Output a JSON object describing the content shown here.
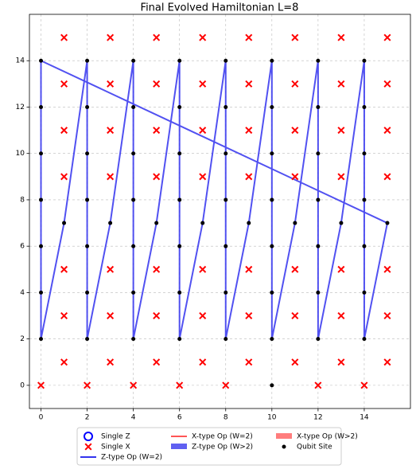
{
  "chart_data": {
    "type": "scatter",
    "title": "Final Evolved Hamiltonian L=8",
    "xlim": [
      -0.5,
      16
    ],
    "ylim": [
      -1,
      16
    ],
    "xticks": [
      0,
      2,
      4,
      6,
      8,
      10,
      12,
      14
    ],
    "yticks": [
      0,
      2,
      4,
      6,
      8,
      10,
      12,
      14
    ],
    "grid": true,
    "legend": "lower center outside",
    "series": [
      {
        "name": "Single Z",
        "color": "#0000ff",
        "marker": "open-circle",
        "x": [],
        "y": []
      },
      {
        "name": "Single X",
        "color": "#ff0000",
        "marker": "x",
        "x": [
          1,
          1,
          1,
          1,
          1,
          1,
          1,
          3,
          3,
          3,
          3,
          3,
          3,
          3,
          5,
          5,
          5,
          5,
          5,
          5,
          5,
          7,
          7,
          7,
          7,
          7,
          7,
          7,
          9,
          9,
          9,
          9,
          9,
          9,
          9,
          11,
          11,
          11,
          11,
          11,
          11,
          11,
          13,
          13,
          13,
          13,
          13,
          13,
          13,
          15,
          15,
          15,
          15,
          15,
          15,
          15,
          0,
          2,
          4,
          6,
          8,
          12,
          14
        ],
        "y": [
          1,
          3,
          5,
          9,
          11,
          13,
          15,
          1,
          3,
          5,
          9,
          11,
          13,
          15,
          1,
          3,
          5,
          9,
          11,
          13,
          15,
          1,
          3,
          5,
          9,
          11,
          13,
          15,
          1,
          3,
          5,
          9,
          11,
          13,
          15,
          1,
          3,
          5,
          9,
          11,
          13,
          15,
          1,
          3,
          5,
          9,
          11,
          13,
          15,
          1,
          3,
          5,
          9,
          11,
          13,
          15,
          0,
          0,
          0,
          0,
          0,
          0,
          0
        ]
      },
      {
        "name": "Z-type Op (W=2)",
        "color": "#3333ee",
        "marker": "line",
        "x": [
          0,
          0,
          1,
          2,
          2,
          3,
          4,
          4,
          5,
          6,
          6,
          7,
          8,
          8,
          9,
          10,
          10,
          11,
          12,
          12,
          13,
          14,
          14,
          15,
          0
        ],
        "y": [
          14,
          2,
          7,
          14,
          2,
          7,
          14,
          2,
          7,
          14,
          2,
          7,
          14,
          2,
          7,
          14,
          2,
          7,
          14,
          2,
          7,
          14,
          2,
          7,
          14
        ]
      },
      {
        "name": "X-type Op (W=2)",
        "color": "#ff5555",
        "marker": "line",
        "x": [],
        "y": []
      },
      {
        "name": "Z-type Op (W>2)",
        "color": "#4444ee",
        "marker": "patch",
        "x": [],
        "y": []
      },
      {
        "name": "X-type Op (W>2)",
        "color": "#ff6666",
        "marker": "patch",
        "x": [],
        "y": []
      },
      {
        "name": "Qubit Site",
        "color": "#000000",
        "marker": "dot",
        "x": [
          0,
          0,
          0,
          0,
          0,
          0,
          0,
          2,
          2,
          2,
          2,
          2,
          2,
          2,
          4,
          4,
          4,
          4,
          4,
          4,
          4,
          6,
          6,
          6,
          6,
          6,
          6,
          6,
          8,
          8,
          8,
          8,
          8,
          8,
          8,
          10,
          10,
          10,
          10,
          10,
          10,
          10,
          12,
          12,
          12,
          12,
          12,
          12,
          12,
          14,
          14,
          14,
          14,
          14,
          14,
          14,
          1,
          3,
          5,
          7,
          9,
          11,
          13,
          15,
          10
        ],
        "y": [
          2,
          4,
          6,
          8,
          10,
          12,
          14,
          2,
          4,
          6,
          8,
          10,
          12,
          14,
          2,
          4,
          6,
          8,
          10,
          12,
          14,
          2,
          4,
          6,
          8,
          10,
          12,
          14,
          2,
          4,
          6,
          8,
          10,
          12,
          14,
          2,
          4,
          6,
          8,
          10,
          12,
          14,
          2,
          4,
          6,
          8,
          10,
          12,
          14,
          2,
          4,
          6,
          8,
          10,
          12,
          14,
          7,
          7,
          7,
          7,
          7,
          7,
          7,
          7,
          0
        ]
      }
    ]
  }
}
